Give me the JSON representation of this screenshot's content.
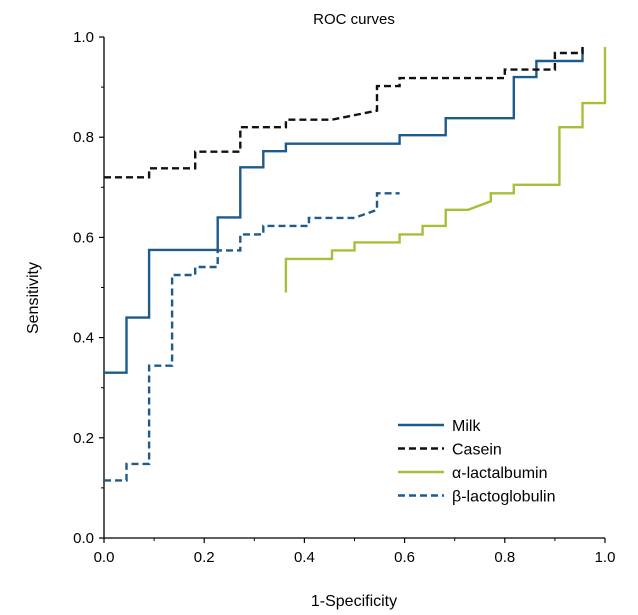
{
  "chart_data": {
    "type": "line",
    "title": "ROC curves",
    "xlabel": "1-Specificity",
    "ylabel": "Sensitivity",
    "xlim": [
      0,
      1
    ],
    "ylim": [
      0,
      1
    ],
    "x_ticks": [
      "0.0",
      "0.2",
      "0.4",
      "0.6",
      "0.8",
      "1.0"
    ],
    "y_ticks": [
      "0.0",
      "0.2",
      "0.4",
      "0.6",
      "0.8",
      "1.0"
    ],
    "legend_position": "bottom-right",
    "grid": false,
    "series": [
      {
        "name": "Milk",
        "color": "#1d5b8a",
        "dash": "solid",
        "points": [
          [
            0,
            0.33
          ],
          [
            0.045,
            0.33
          ],
          [
            0.045,
            0.44
          ],
          [
            0.09,
            0.44
          ],
          [
            0.09,
            0.575
          ],
          [
            0.227,
            0.575
          ],
          [
            0.227,
            0.64
          ],
          [
            0.272,
            0.64
          ],
          [
            0.272,
            0.74
          ],
          [
            0.318,
            0.74
          ],
          [
            0.318,
            0.772
          ],
          [
            0.363,
            0.772
          ],
          [
            0.363,
            0.787
          ],
          [
            0.59,
            0.787
          ],
          [
            0.59,
            0.804
          ],
          [
            0.682,
            0.804
          ],
          [
            0.682,
            0.838
          ],
          [
            0.818,
            0.838
          ],
          [
            0.818,
            0.92
          ],
          [
            0.863,
            0.92
          ],
          [
            0.863,
            0.952
          ],
          [
            0.955,
            0.952
          ],
          [
            0.955,
            0.98
          ]
        ]
      },
      {
        "name": "Casein",
        "color": "#111111",
        "dash": "dashed",
        "points": [
          [
            0,
            0.72
          ],
          [
            0.09,
            0.72
          ],
          [
            0.09,
            0.738
          ],
          [
            0.182,
            0.738
          ],
          [
            0.182,
            0.771
          ],
          [
            0.272,
            0.771
          ],
          [
            0.272,
            0.82
          ],
          [
            0.363,
            0.82
          ],
          [
            0.363,
            0.835
          ],
          [
            0.455,
            0.835
          ],
          [
            0.545,
            0.853
          ],
          [
            0.545,
            0.902
          ],
          [
            0.59,
            0.902
          ],
          [
            0.59,
            0.918
          ],
          [
            0.8,
            0.918
          ],
          [
            0.8,
            0.935
          ],
          [
            0.9,
            0.935
          ],
          [
            0.9,
            0.968
          ],
          [
            0.955,
            0.968
          ],
          [
            0.955,
            0.98
          ]
        ]
      },
      {
        "name": "α-lactalbumin",
        "color": "#a8bf3a",
        "dash": "solid",
        "points": [
          [
            0.363,
            0.49
          ],
          [
            0.363,
            0.557
          ],
          [
            0.455,
            0.557
          ],
          [
            0.455,
            0.574
          ],
          [
            0.5,
            0.574
          ],
          [
            0.5,
            0.59
          ],
          [
            0.59,
            0.59
          ],
          [
            0.59,
            0.606
          ],
          [
            0.636,
            0.606
          ],
          [
            0.636,
            0.623
          ],
          [
            0.682,
            0.623
          ],
          [
            0.682,
            0.655
          ],
          [
            0.727,
            0.655
          ],
          [
            0.772,
            0.672
          ],
          [
            0.772,
            0.688
          ],
          [
            0.818,
            0.688
          ],
          [
            0.818,
            0.705
          ],
          [
            0.909,
            0.705
          ],
          [
            0.909,
            0.82
          ],
          [
            0.955,
            0.82
          ],
          [
            0.955,
            0.868
          ],
          [
            1.0,
            0.868
          ],
          [
            1.0,
            0.98
          ]
        ]
      },
      {
        "name": "β-lactoglobulin",
        "color": "#1d5b8a",
        "dash": "dashed",
        "points": [
          [
            0,
            0.115
          ],
          [
            0.045,
            0.115
          ],
          [
            0.045,
            0.148
          ],
          [
            0.09,
            0.148
          ],
          [
            0.09,
            0.344
          ],
          [
            0.136,
            0.344
          ],
          [
            0.136,
            0.525
          ],
          [
            0.182,
            0.525
          ],
          [
            0.182,
            0.541
          ],
          [
            0.227,
            0.541
          ],
          [
            0.227,
            0.574
          ],
          [
            0.272,
            0.574
          ],
          [
            0.272,
            0.606
          ],
          [
            0.318,
            0.606
          ],
          [
            0.318,
            0.623
          ],
          [
            0.409,
            0.623
          ],
          [
            0.409,
            0.639
          ],
          [
            0.5,
            0.639
          ],
          [
            0.545,
            0.655
          ],
          [
            0.545,
            0.688
          ],
          [
            0.59,
            0.688
          ]
        ]
      }
    ]
  }
}
